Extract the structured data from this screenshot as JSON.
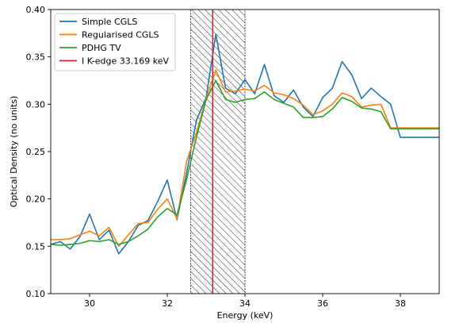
{
  "chart_data": {
    "type": "line",
    "title": "",
    "xlabel": "Energy (keV)",
    "ylabel": "Optical Density (no units)",
    "xlim": [
      29.0,
      39.0
    ],
    "ylim": [
      0.1,
      0.4
    ],
    "xticks": [
      30,
      32,
      34,
      36,
      38
    ],
    "yticks": [
      0.1,
      0.15,
      0.2,
      0.25,
      0.3,
      0.35,
      0.4
    ],
    "grid": false,
    "legend_position": "top-left",
    "x": [
      29.0,
      29.25,
      29.5,
      29.75,
      30.0,
      30.25,
      30.5,
      30.75,
      31.0,
      31.25,
      31.5,
      31.75,
      32.0,
      32.25,
      32.5,
      32.75,
      33.0,
      33.25,
      33.5,
      33.75,
      34.0,
      34.25,
      34.5,
      34.75,
      35.0,
      35.25,
      35.5,
      35.75,
      36.0,
      36.25,
      36.5,
      36.75,
      37.0,
      37.25,
      37.5,
      37.75,
      38.0,
      38.25,
      38.5,
      38.75,
      39.0
    ],
    "series": [
      {
        "name": "Simple CGLS",
        "color": "#1f77b4",
        "values": [
          0.152,
          0.155,
          0.147,
          0.16,
          0.184,
          0.157,
          0.167,
          0.142,
          0.155,
          0.172,
          0.177,
          0.197,
          0.22,
          0.178,
          0.228,
          0.283,
          0.307,
          0.374,
          0.317,
          0.311,
          0.326,
          0.311,
          0.342,
          0.309,
          0.302,
          0.315,
          0.297,
          0.287,
          0.307,
          0.317,
          0.345,
          0.331,
          0.306,
          0.317,
          0.308,
          0.3,
          0.265,
          0.265,
          0.265,
          0.265,
          0.265
        ]
      },
      {
        "name": "Regularised CGLS",
        "color": "#ff7f0e",
        "values": [
          0.157,
          0.157,
          0.158,
          0.162,
          0.166,
          0.161,
          0.17,
          0.15,
          0.162,
          0.174,
          0.175,
          0.189,
          0.2,
          0.179,
          0.24,
          0.27,
          0.306,
          0.336,
          0.313,
          0.314,
          0.316,
          0.314,
          0.32,
          0.312,
          0.31,
          0.306,
          0.299,
          0.289,
          0.293,
          0.3,
          0.312,
          0.308,
          0.297,
          0.299,
          0.3,
          0.275,
          0.275,
          0.275,
          0.275,
          0.275,
          0.275
        ]
      },
      {
        "name": "PDHG TV",
        "color": "#2ca02c",
        "values": [
          0.152,
          0.151,
          0.152,
          0.153,
          0.156,
          0.155,
          0.157,
          0.152,
          0.155,
          0.161,
          0.168,
          0.181,
          0.19,
          0.183,
          0.221,
          0.265,
          0.305,
          0.325,
          0.305,
          0.302,
          0.305,
          0.306,
          0.313,
          0.305,
          0.301,
          0.297,
          0.286,
          0.286,
          0.287,
          0.295,
          0.307,
          0.303,
          0.296,
          0.295,
          0.292,
          0.274,
          0.274,
          0.274,
          0.274,
          0.274,
          0.274
        ]
      }
    ],
    "vline": {
      "name": "I K-edge 33.169 keV",
      "x": 33.169,
      "color": "#d62728"
    },
    "shaded_region": {
      "x_range": [
        32.6,
        34.0
      ],
      "color": "#1f3b6e"
    }
  }
}
